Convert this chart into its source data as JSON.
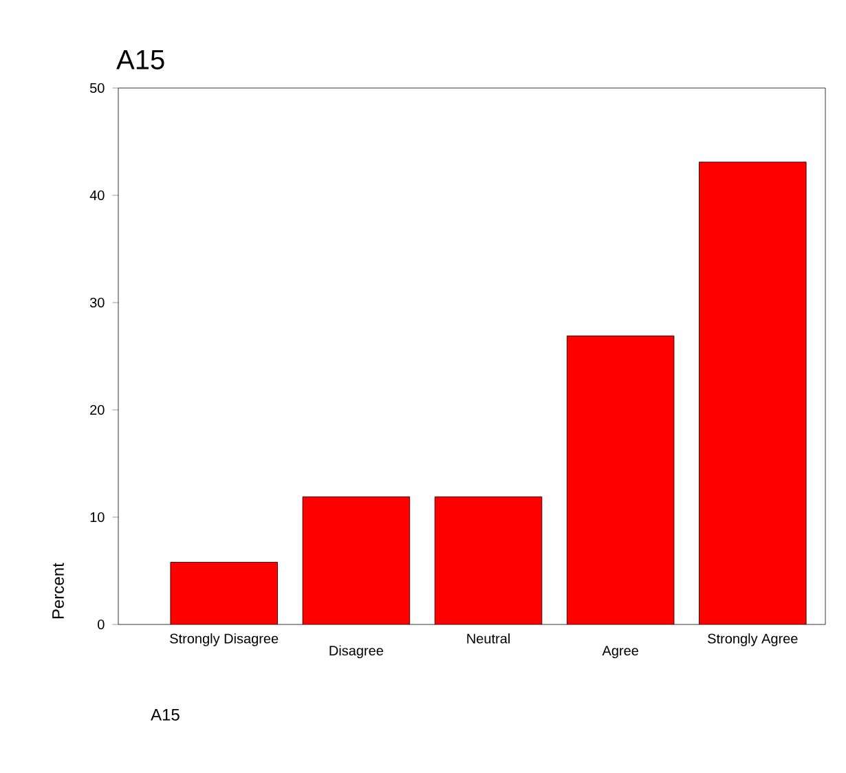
{
  "chart_data": {
    "type": "bar",
    "title": "A15",
    "xlabel": "A15",
    "ylabel": "Percent",
    "categories": [
      "Strongly Disagree",
      "Disagree",
      "Neutral",
      "Agree",
      "Strongly Agree"
    ],
    "values": [
      5.8,
      11.9,
      11.9,
      26.9,
      43.1
    ],
    "color": "#ff0000",
    "ylim": [
      0,
      50
    ],
    "yticks": [
      0,
      10,
      20,
      30,
      40,
      50
    ]
  }
}
